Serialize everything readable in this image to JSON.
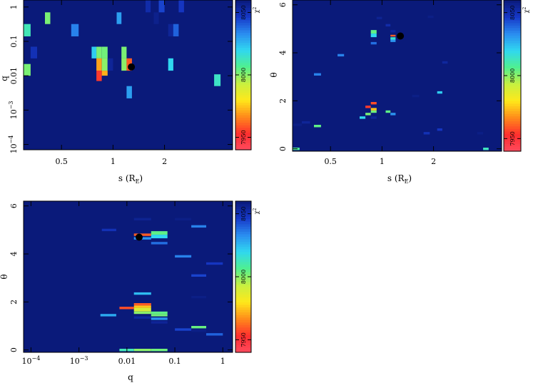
{
  "colors": {
    "background": "#0a1a7a",
    "frame": "#000000",
    "colormap": [
      "#ff4a5e",
      "#ff2e2e",
      "#ff8a1a",
      "#ffe81a",
      "#c8f040",
      "#50f090",
      "#30d8f0",
      "#2a8cf0",
      "#1638c8",
      "#0a1a7a"
    ]
  },
  "chart_data": [
    {
      "type": "heatmap",
      "id": "panel-s-q",
      "xlabel": "s (R",
      "xlabel_sub": "E",
      "xlabel_close": ")",
      "ylabel": "q",
      "xscale": "log",
      "yscale": "log",
      "xlim": [
        0.3,
        5.0
      ],
      "ylim": [
        7e-05,
        1.6
      ],
      "xticks": [
        {
          "v": 0.5,
          "label": "0.5"
        },
        {
          "v": 1,
          "label": "1"
        },
        {
          "v": 2,
          "label": "2"
        }
      ],
      "yticks": [
        {
          "v": 1,
          "base": "1",
          "exp": ""
        },
        {
          "v": 0.1,
          "base": "0.1",
          "exp": ""
        },
        {
          "v": 0.01,
          "base": "0.01",
          "exp": ""
        },
        {
          "v": 0.001,
          "base": "10",
          "exp": "−3"
        },
        {
          "v": 0.0001,
          "base": "10",
          "exp": "−4"
        }
      ],
      "colorbar": {
        "label": "χ",
        "label_sup": "2",
        "range": [
          7940,
          8060
        ],
        "ticks": [
          {
            "v": 7950,
            "label": "7950"
          },
          {
            "v": 8000,
            "label": "8000"
          },
          {
            "v": 8050,
            "label": "8050"
          }
        ]
      },
      "best_fit": {
        "x": 1.28,
        "y": 0.018
      },
      "cells": [
        {
          "x0": 0.3,
          "x1": 0.33,
          "y0": 0.14,
          "y1": 0.32,
          "chi2": 8012
        },
        {
          "x0": 0.3,
          "x1": 0.33,
          "y0": 0.01,
          "y1": 0.022,
          "chi2": 8002
        },
        {
          "x0": 0.33,
          "x1": 0.36,
          "y0": 0.032,
          "y1": 0.07,
          "chi2": 8050
        },
        {
          "x0": 0.4,
          "x1": 0.43,
          "y0": 0.32,
          "y1": 0.7,
          "chi2": 8002
        },
        {
          "x0": 0.57,
          "x1": 0.63,
          "y0": 0.14,
          "y1": 0.32,
          "chi2": 8035
        },
        {
          "x0": 0.75,
          "x1": 0.8,
          "y0": 0.032,
          "y1": 0.07,
          "chi2": 8022
        },
        {
          "x0": 0.8,
          "x1": 0.86,
          "y0": 0.032,
          "y1": 0.07,
          "chi2": 8002
        },
        {
          "x0": 0.8,
          "x1": 0.86,
          "y0": 0.014,
          "y1": 0.032,
          "chi2": 7970
        },
        {
          "x0": 0.8,
          "x1": 0.86,
          "y0": 0.007,
          "y1": 0.014,
          "chi2": 7955
        },
        {
          "x0": 0.86,
          "x1": 0.93,
          "y0": 0.032,
          "y1": 0.07,
          "chi2": 8003
        },
        {
          "x0": 0.86,
          "x1": 0.93,
          "y0": 0.014,
          "y1": 0.032,
          "chi2": 8000
        },
        {
          "x0": 0.86,
          "x1": 0.93,
          "y0": 0.01,
          "y1": 0.014,
          "chi2": 7972
        },
        {
          "x0": 0.93,
          "x1": 1.0,
          "y0": 0.014,
          "y1": 0.032,
          "chi2": 8055
        },
        {
          "x0": 1.05,
          "x1": 1.12,
          "y0": 0.32,
          "y1": 0.7,
          "chi2": 8030
        },
        {
          "x0": 1.12,
          "x1": 1.2,
          "y0": 0.032,
          "y1": 0.07,
          "chi2": 8002
        },
        {
          "x0": 1.12,
          "x1": 1.2,
          "y0": 0.014,
          "y1": 0.032,
          "chi2": 8000
        },
        {
          "x0": 1.2,
          "x1": 1.29,
          "y0": 0.014,
          "y1": 0.032,
          "chi2": 7960
        },
        {
          "x0": 1.2,
          "x1": 1.29,
          "y0": 0.0022,
          "y1": 0.005,
          "chi2": 8030
        },
        {
          "x0": 1.55,
          "x1": 1.66,
          "y0": 0.7,
          "y1": 1.6,
          "chi2": 8052
        },
        {
          "x0": 1.73,
          "x1": 1.85,
          "y0": 0.32,
          "y1": 0.7,
          "chi2": 8057
        },
        {
          "x0": 1.85,
          "x1": 2.0,
          "y0": 0.7,
          "y1": 1.6,
          "chi2": 8045
        },
        {
          "x0": 2.1,
          "x1": 2.25,
          "y0": 0.14,
          "y1": 0.32,
          "chi2": 8055
        },
        {
          "x0": 2.25,
          "x1": 2.42,
          "y0": 0.14,
          "y1": 0.32,
          "chi2": 8040
        },
        {
          "x0": 2.1,
          "x1": 2.25,
          "y0": 0.014,
          "y1": 0.032,
          "chi2": 8020
        },
        {
          "x0": 2.42,
          "x1": 2.6,
          "y0": 0.7,
          "y1": 1.6,
          "chi2": 8048
        },
        {
          "x0": 3.9,
          "x1": 4.25,
          "y0": 0.005,
          "y1": 0.011,
          "chi2": 8014
        }
      ]
    },
    {
      "type": "heatmap",
      "id": "panel-s-theta",
      "xlabel": "s (R",
      "xlabel_sub": "E",
      "xlabel_close": ")",
      "ylabel": "θ",
      "xscale": "log",
      "yscale": "linear",
      "xlim": [
        0.3,
        5.0
      ],
      "ylim": [
        -0.1,
        6.2
      ],
      "xticks": [
        {
          "v": 0.5,
          "label": "0.5"
        },
        {
          "v": 1,
          "label": "1"
        },
        {
          "v": 2,
          "label": "2"
        }
      ],
      "yticks": [
        {
          "v": 0,
          "label": "0"
        },
        {
          "v": 2,
          "label": "2"
        },
        {
          "v": 4,
          "label": "4"
        },
        {
          "v": 6,
          "label": "6"
        }
      ],
      "colorbar": {
        "label": "χ",
        "label_sup": "2",
        "range": [
          7940,
          8060
        ],
        "ticks": [
          {
            "v": 7950,
            "label": "7950"
          },
          {
            "v": 8000,
            "label": "8000"
          },
          {
            "v": 8050,
            "label": "8050"
          }
        ]
      },
      "best_fit": {
        "x": 1.28,
        "y": 4.7
      },
      "cells": [
        {
          "x0": 0.3,
          "x1": 0.33,
          "y0": -0.05,
          "y1": 0.05,
          "chi2": 8008
        },
        {
          "x0": 0.3,
          "x1": 0.34,
          "y0": 0.95,
          "y1": 1.05,
          "chi2": 8058
        },
        {
          "x0": 0.34,
          "x1": 0.38,
          "y0": 1.05,
          "y1": 1.15,
          "chi2": 8055
        },
        {
          "x0": 0.4,
          "x1": 0.44,
          "y0": 0.9,
          "y1": 1.0,
          "chi2": 8005
        },
        {
          "x0": 0.4,
          "x1": 0.44,
          "y0": 3.05,
          "y1": 3.15,
          "chi2": 8035
        },
        {
          "x0": 0.55,
          "x1": 0.6,
          "y0": 3.85,
          "y1": 3.95,
          "chi2": 8035
        },
        {
          "x0": 0.74,
          "x1": 0.8,
          "y0": 1.25,
          "y1": 1.35,
          "chi2": 8020
        },
        {
          "x0": 0.8,
          "x1": 0.86,
          "y0": 1.4,
          "y1": 1.5,
          "chi2": 8002
        },
        {
          "x0": 0.8,
          "x1": 0.86,
          "y0": 1.7,
          "y1": 1.8,
          "chi2": 7955
        },
        {
          "x0": 0.86,
          "x1": 0.93,
          "y0": 1.5,
          "y1": 1.6,
          "chi2": 8003
        },
        {
          "x0": 0.86,
          "x1": 0.93,
          "y0": 1.6,
          "y1": 1.7,
          "chi2": 7975
        },
        {
          "x0": 0.86,
          "x1": 0.93,
          "y0": 1.85,
          "y1": 1.95,
          "chi2": 7958
        },
        {
          "x0": 0.86,
          "x1": 0.93,
          "y0": 1.25,
          "y1": 1.35,
          "chi2": 8055
        },
        {
          "x0": 0.86,
          "x1": 0.93,
          "y0": 4.8,
          "y1": 4.95,
          "chi2": 8005
        },
        {
          "x0": 0.86,
          "x1": 0.93,
          "y0": 4.65,
          "y1": 4.8,
          "chi2": 8020
        },
        {
          "x0": 0.86,
          "x1": 0.93,
          "y0": 4.35,
          "y1": 4.45,
          "chi2": 8038
        },
        {
          "x0": 0.93,
          "x1": 1.0,
          "y0": 5.4,
          "y1": 5.5,
          "chi2": 8056
        },
        {
          "x0": 1.05,
          "x1": 1.12,
          "y0": 1.5,
          "y1": 1.6,
          "chi2": 8005
        },
        {
          "x0": 1.05,
          "x1": 1.12,
          "y0": 5.1,
          "y1": 5.2,
          "chi2": 8052
        },
        {
          "x0": 1.12,
          "x1": 1.2,
          "y0": 4.85,
          "y1": 4.95,
          "chi2": 8055
        },
        {
          "x0": 1.12,
          "x1": 1.2,
          "y0": 1.4,
          "y1": 1.5,
          "chi2": 8032
        },
        {
          "x0": 1.12,
          "x1": 1.2,
          "y0": 4.68,
          "y1": 4.75,
          "chi2": 7960
        },
        {
          "x0": 1.12,
          "x1": 1.2,
          "y0": 4.55,
          "y1": 4.65,
          "chi2": 8015
        },
        {
          "x0": 1.12,
          "x1": 1.2,
          "y0": 4.45,
          "y1": 4.55,
          "chi2": 8032
        },
        {
          "x0": 1.5,
          "x1": 1.65,
          "y0": 2.15,
          "y1": 2.25,
          "chi2": 8058
        },
        {
          "x0": 1.75,
          "x1": 1.9,
          "y0": 0.6,
          "y1": 0.7,
          "chi2": 8050
        },
        {
          "x0": 1.85,
          "x1": 2.0,
          "y0": 5.45,
          "y1": 5.55,
          "chi2": 8058
        },
        {
          "x0": 2.1,
          "x1": 2.25,
          "y0": 2.3,
          "y1": 2.4,
          "chi2": 8022
        },
        {
          "x0": 2.1,
          "x1": 2.25,
          "y0": 0.75,
          "y1": 0.85,
          "chi2": 8048
        },
        {
          "x0": 2.25,
          "x1": 2.42,
          "y0": 3.55,
          "y1": 3.65,
          "chi2": 8054
        },
        {
          "x0": 3.6,
          "x1": 3.9,
          "y0": 0.6,
          "y1": 0.7,
          "chi2": 8058
        },
        {
          "x0": 3.9,
          "x1": 4.2,
          "y0": -0.05,
          "y1": 0.05,
          "chi2": 8013
        }
      ]
    },
    {
      "type": "heatmap",
      "id": "panel-q-theta",
      "xlabel": "q",
      "xlabel_sub": "",
      "xlabel_close": "",
      "ylabel": "θ",
      "xscale": "log",
      "yscale": "linear",
      "xlim": [
        7e-05,
        1.6
      ],
      "ylim": [
        -0.1,
        6.2
      ],
      "xticks": [
        {
          "v": 0.0001,
          "base": "10",
          "exp": "−4"
        },
        {
          "v": 0.001,
          "base": "10",
          "exp": "−3"
        },
        {
          "v": 0.01,
          "base": "0.01",
          "exp": ""
        },
        {
          "v": 0.1,
          "base": "0.1",
          "exp": ""
        },
        {
          "v": 1,
          "base": "1",
          "exp": ""
        }
      ],
      "yticks": [
        {
          "v": 0,
          "label": "0"
        },
        {
          "v": 2,
          "label": "2"
        },
        {
          "v": 4,
          "label": "4"
        },
        {
          "v": 6,
          "label": "6"
        }
      ],
      "colorbar": {
        "label": "χ",
        "label_sup": "2",
        "range": [
          7940,
          8060
        ],
        "ticks": [
          {
            "v": 7950,
            "label": "7950"
          },
          {
            "v": 8000,
            "label": "8000"
          },
          {
            "v": 8050,
            "label": "8050"
          }
        ]
      },
      "best_fit": {
        "x": 0.018,
        "y": 4.7
      },
      "cells": [
        {
          "x0": 0.003,
          "x1": 0.006,
          "y0": 4.95,
          "y1": 5.05,
          "chi2": 8050
        },
        {
          "x0": 0.0028,
          "x1": 0.006,
          "y0": 1.4,
          "y1": 1.5,
          "chi2": 8028
        },
        {
          "x0": 0.007,
          "x1": 0.014,
          "y0": 1.7,
          "y1": 1.8,
          "chi2": 7958
        },
        {
          "x0": 0.007,
          "x1": 0.014,
          "y0": -0.05,
          "y1": 0.05,
          "chi2": 8012
        },
        {
          "x0": 0.014,
          "x1": 0.032,
          "y0": 5.4,
          "y1": 5.5,
          "chi2": 8056
        },
        {
          "x0": 0.014,
          "x1": 0.032,
          "y0": 4.75,
          "y1": 4.85,
          "chi2": 7960
        },
        {
          "x0": 0.014,
          "x1": 0.032,
          "y0": 4.6,
          "y1": 4.7,
          "chi2": 8032
        },
        {
          "x0": 0.014,
          "x1": 0.032,
          "y0": 2.3,
          "y1": 2.4,
          "chi2": 8025
        },
        {
          "x0": 0.014,
          "x1": 0.032,
          "y0": 1.85,
          "y1": 1.95,
          "chi2": 7960
        },
        {
          "x0": 0.014,
          "x1": 0.032,
          "y0": 1.75,
          "y1": 1.85,
          "chi2": 7975
        },
        {
          "x0": 0.014,
          "x1": 0.032,
          "y0": 1.6,
          "y1": 1.75,
          "chi2": 7990
        },
        {
          "x0": 0.014,
          "x1": 0.032,
          "y0": 1.5,
          "y1": 1.6,
          "chi2": 8000
        },
        {
          "x0": 0.014,
          "x1": 0.032,
          "y0": 1.3,
          "y1": 1.4,
          "chi2": 8054
        },
        {
          "x0": 0.014,
          "x1": 0.032,
          "y0": -0.05,
          "y1": 0.05,
          "chi2": 8000
        },
        {
          "x0": 0.032,
          "x1": 0.07,
          "y0": 4.8,
          "y1": 4.95,
          "chi2": 8005
        },
        {
          "x0": 0.032,
          "x1": 0.07,
          "y0": 4.65,
          "y1": 4.8,
          "chi2": 8020
        },
        {
          "x0": 0.032,
          "x1": 0.07,
          "y0": 4.4,
          "y1": 4.5,
          "chi2": 8038
        },
        {
          "x0": 0.032,
          "x1": 0.07,
          "y0": 1.5,
          "y1": 1.6,
          "chi2": 8005
        },
        {
          "x0": 0.032,
          "x1": 0.07,
          "y0": 1.4,
          "y1": 1.5,
          "chi2": 8003
        },
        {
          "x0": 0.032,
          "x1": 0.07,
          "y0": 1.25,
          "y1": 1.35,
          "chi2": 8032
        },
        {
          "x0": 0.032,
          "x1": 0.07,
          "y0": 1.1,
          "y1": 1.2,
          "chi2": 8055
        },
        {
          "x0": 0.032,
          "x1": 0.07,
          "y0": -0.05,
          "y1": 0.05,
          "chi2": 8003
        },
        {
          "x0": 0.1,
          "x1": 0.22,
          "y0": 5.4,
          "y1": 5.5,
          "chi2": 8058
        },
        {
          "x0": 0.1,
          "x1": 0.22,
          "y0": 3.85,
          "y1": 3.95,
          "chi2": 8035
        },
        {
          "x0": 0.1,
          "x1": 0.22,
          "y0": 0.8,
          "y1": 0.9,
          "chi2": 8045
        },
        {
          "x0": 0.22,
          "x1": 0.45,
          "y0": 5.1,
          "y1": 5.2,
          "chi2": 8035
        },
        {
          "x0": 0.22,
          "x1": 0.45,
          "y0": 3.05,
          "y1": 3.15,
          "chi2": 8045
        },
        {
          "x0": 0.22,
          "x1": 0.45,
          "y0": 2.15,
          "y1": 2.25,
          "chi2": 8058
        },
        {
          "x0": 0.22,
          "x1": 0.45,
          "y0": 0.9,
          "y1": 1.0,
          "chi2": 8004
        },
        {
          "x0": 0.22,
          "x1": 0.45,
          "y0": 0.75,
          "y1": 0.85,
          "chi2": 8058
        },
        {
          "x0": 0.45,
          "x1": 1.0,
          "y0": 3.55,
          "y1": 3.65,
          "chi2": 8048
        },
        {
          "x0": 0.45,
          "x1": 1.0,
          "y0": 0.6,
          "y1": 0.7,
          "chi2": 8040
        }
      ]
    }
  ]
}
